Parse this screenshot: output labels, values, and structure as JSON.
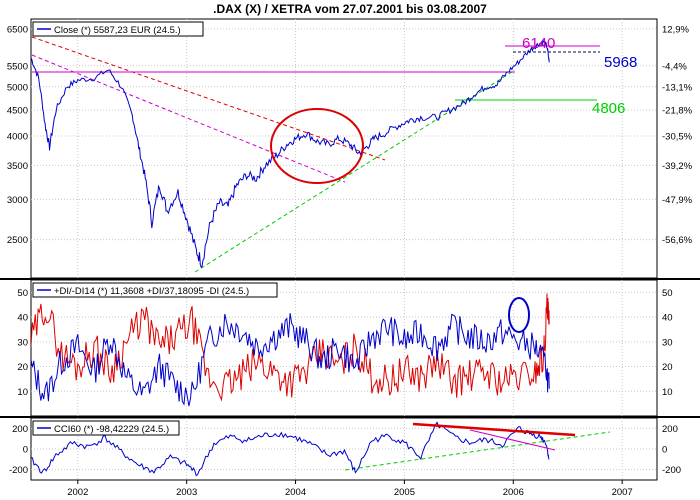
{
  "title": ".DAX (X) / XETRA vom 27.07.2001 bis 03.08.2007",
  "x_ticks": [
    "2002",
    "2003",
    "2004",
    "2005",
    "2006",
    "2007"
  ],
  "colors": {
    "price": "#0000cc",
    "di_plus": "#0000cc",
    "di_minus": "#dd0000",
    "annot_blue": "#0000cc",
    "annot_green": "#00cc00",
    "annot_magenta": "#cc00cc",
    "annot_red": "#dd0000"
  },
  "chart_data": [
    {
      "type": "line",
      "legend": "Close (*) 5587,23 EUR (24.5.)",
      "y_ticks_left": [
        "6500",
        "5500",
        "5000",
        "4500",
        "4000",
        "3500",
        "3000",
        "2500"
      ],
      "y_ticks_right": [
        "12,9%",
        "-4,4%",
        "-13,1%",
        "-21,8%",
        "-30,5%",
        "-39,2%",
        "-47,9%",
        "-56,6%"
      ],
      "ylim": [
        2100,
        6800
      ],
      "series": [
        {
          "name": "Close",
          "values": [
            {
              "x": 2001.57,
              "y": 5700
            },
            {
              "x": 2001.64,
              "y": 5200
            },
            {
              "x": 2001.7,
              "y": 4200
            },
            {
              "x": 2001.74,
              "y": 3800
            },
            {
              "x": 2001.8,
              "y": 4500
            },
            {
              "x": 2001.9,
              "y": 5000
            },
            {
              "x": 2002.0,
              "y": 5150
            },
            {
              "x": 2002.15,
              "y": 5200
            },
            {
              "x": 2002.28,
              "y": 5400
            },
            {
              "x": 2002.4,
              "y": 5000
            },
            {
              "x": 2002.5,
              "y": 4400
            },
            {
              "x": 2002.56,
              "y": 3800
            },
            {
              "x": 2002.62,
              "y": 3300
            },
            {
              "x": 2002.68,
              "y": 2700
            },
            {
              "x": 2002.75,
              "y": 3200
            },
            {
              "x": 2002.82,
              "y": 2850
            },
            {
              "x": 2002.92,
              "y": 3100
            },
            {
              "x": 2003.0,
              "y": 2750
            },
            {
              "x": 2003.08,
              "y": 2400
            },
            {
              "x": 2003.14,
              "y": 2250
            },
            {
              "x": 2003.22,
              "y": 2700
            },
            {
              "x": 2003.3,
              "y": 2950
            },
            {
              "x": 2003.38,
              "y": 2900
            },
            {
              "x": 2003.46,
              "y": 3200
            },
            {
              "x": 2003.55,
              "y": 3350
            },
            {
              "x": 2003.64,
              "y": 3300
            },
            {
              "x": 2003.72,
              "y": 3500
            },
            {
              "x": 2003.82,
              "y": 3650
            },
            {
              "x": 2003.92,
              "y": 3850
            },
            {
              "x": 2004.0,
              "y": 3950
            },
            {
              "x": 2004.1,
              "y": 4050
            },
            {
              "x": 2004.2,
              "y": 3900
            },
            {
              "x": 2004.3,
              "y": 3850
            },
            {
              "x": 2004.4,
              "y": 3950
            },
            {
              "x": 2004.5,
              "y": 3850
            },
            {
              "x": 2004.58,
              "y": 3700
            },
            {
              "x": 2004.65,
              "y": 3800
            },
            {
              "x": 2004.72,
              "y": 3950
            },
            {
              "x": 2004.82,
              "y": 4050
            },
            {
              "x": 2004.95,
              "y": 4200
            },
            {
              "x": 2005.05,
              "y": 4300
            },
            {
              "x": 2005.15,
              "y": 4350
            },
            {
              "x": 2005.3,
              "y": 4350
            },
            {
              "x": 2005.42,
              "y": 4500
            },
            {
              "x": 2005.55,
              "y": 4650
            },
            {
              "x": 2005.65,
              "y": 4850
            },
            {
              "x": 2005.75,
              "y": 5000
            },
            {
              "x": 2005.85,
              "y": 5050
            },
            {
              "x": 2005.95,
              "y": 5350
            },
            {
              "x": 2006.05,
              "y": 5600
            },
            {
              "x": 2006.15,
              "y": 5900
            },
            {
              "x": 2006.22,
              "y": 6050
            },
            {
              "x": 2006.28,
              "y": 6140
            },
            {
              "x": 2006.31,
              "y": 6000
            },
            {
              "x": 2006.33,
              "y": 5587
            }
          ]
        }
      ],
      "annotations": [
        "6140",
        "5968",
        "4806"
      ]
    },
    {
      "type": "line",
      "legend": "+DI/-DI14 (*) 11,3608 +DI/37,18095 -DI (24.5.)",
      "y_ticks": [
        "50",
        "40",
        "30",
        "20",
        "10"
      ],
      "ylim": [
        0,
        55
      ],
      "series": [
        {
          "name": "+DI",
          "values": [
            {
              "x": 2001.57,
              "y": 20
            },
            {
              "x": 2001.7,
              "y": 8
            },
            {
              "x": 2001.85,
              "y": 22
            },
            {
              "x": 2002.0,
              "y": 28
            },
            {
              "x": 2002.15,
              "y": 18
            },
            {
              "x": 2002.3,
              "y": 32
            },
            {
              "x": 2002.45,
              "y": 15
            },
            {
              "x": 2002.6,
              "y": 8
            },
            {
              "x": 2002.75,
              "y": 20
            },
            {
              "x": 2002.9,
              "y": 12
            },
            {
              "x": 2003.05,
              "y": 8
            },
            {
              "x": 2003.2,
              "y": 30
            },
            {
              "x": 2003.35,
              "y": 38
            },
            {
              "x": 2003.5,
              "y": 35
            },
            {
              "x": 2003.65,
              "y": 28
            },
            {
              "x": 2003.8,
              "y": 32
            },
            {
              "x": 2003.95,
              "y": 36
            },
            {
              "x": 2004.1,
              "y": 30
            },
            {
              "x": 2004.25,
              "y": 22
            },
            {
              "x": 2004.4,
              "y": 28
            },
            {
              "x": 2004.55,
              "y": 20
            },
            {
              "x": 2004.7,
              "y": 32
            },
            {
              "x": 2004.85,
              "y": 36
            },
            {
              "x": 2005.0,
              "y": 30
            },
            {
              "x": 2005.15,
              "y": 34
            },
            {
              "x": 2005.3,
              "y": 28
            },
            {
              "x": 2005.45,
              "y": 36
            },
            {
              "x": 2005.6,
              "y": 32
            },
            {
              "x": 2005.75,
              "y": 30
            },
            {
              "x": 2005.9,
              "y": 34
            },
            {
              "x": 2006.05,
              "y": 30
            },
            {
              "x": 2006.2,
              "y": 28
            },
            {
              "x": 2006.3,
              "y": 20
            },
            {
              "x": 2006.33,
              "y": 11
            }
          ]
        },
        {
          "name": "-DI",
          "values": [
            {
              "x": 2001.57,
              "y": 30
            },
            {
              "x": 2001.7,
              "y": 45
            },
            {
              "x": 2001.85,
              "y": 25
            },
            {
              "x": 2002.0,
              "y": 20
            },
            {
              "x": 2002.15,
              "y": 28
            },
            {
              "x": 2002.3,
              "y": 18
            },
            {
              "x": 2002.45,
              "y": 30
            },
            {
              "x": 2002.6,
              "y": 40
            },
            {
              "x": 2002.75,
              "y": 28
            },
            {
              "x": 2002.9,
              "y": 32
            },
            {
              "x": 2003.05,
              "y": 38
            },
            {
              "x": 2003.2,
              "y": 15
            },
            {
              "x": 2003.35,
              "y": 12
            },
            {
              "x": 2003.5,
              "y": 16
            },
            {
              "x": 2003.65,
              "y": 22
            },
            {
              "x": 2003.8,
              "y": 18
            },
            {
              "x": 2003.95,
              "y": 14
            },
            {
              "x": 2004.1,
              "y": 18
            },
            {
              "x": 2004.25,
              "y": 26
            },
            {
              "x": 2004.4,
              "y": 20
            },
            {
              "x": 2004.55,
              "y": 28
            },
            {
              "x": 2004.7,
              "y": 16
            },
            {
              "x": 2004.85,
              "y": 14
            },
            {
              "x": 2005.0,
              "y": 18
            },
            {
              "x": 2005.15,
              "y": 16
            },
            {
              "x": 2005.3,
              "y": 22
            },
            {
              "x": 2005.45,
              "y": 14
            },
            {
              "x": 2005.6,
              "y": 16
            },
            {
              "x": 2005.75,
              "y": 18
            },
            {
              "x": 2005.9,
              "y": 14
            },
            {
              "x": 2006.05,
              "y": 16
            },
            {
              "x": 2006.2,
              "y": 18
            },
            {
              "x": 2006.28,
              "y": 25
            },
            {
              "x": 2006.31,
              "y": 44
            },
            {
              "x": 2006.33,
              "y": 37
            }
          ]
        }
      ]
    },
    {
      "type": "line",
      "legend": "CCI60 (*) -98,42229 (24.5.)",
      "y_ticks_left": [
        "200",
        "0",
        "-200"
      ],
      "y_ticks_right": [
        "200",
        "0",
        "-200"
      ],
      "ylim": [
        -300,
        300
      ],
      "series": [
        {
          "name": "CCI60",
          "values": [
            {
              "x": 2001.57,
              "y": -100
            },
            {
              "x": 2001.68,
              "y": -230
            },
            {
              "x": 2001.8,
              "y": -60
            },
            {
              "x": 2001.95,
              "y": 60
            },
            {
              "x": 2002.1,
              "y": 20
            },
            {
              "x": 2002.25,
              "y": 110
            },
            {
              "x": 2002.4,
              "y": -30
            },
            {
              "x": 2002.55,
              "y": -150
            },
            {
              "x": 2002.7,
              "y": -220
            },
            {
              "x": 2002.85,
              "y": -80
            },
            {
              "x": 2003.0,
              "y": -150
            },
            {
              "x": 2003.1,
              "y": -240
            },
            {
              "x": 2003.25,
              "y": 50
            },
            {
              "x": 2003.4,
              "y": 120
            },
            {
              "x": 2003.55,
              "y": 80
            },
            {
              "x": 2003.7,
              "y": 130
            },
            {
              "x": 2003.85,
              "y": 150
            },
            {
              "x": 2004.0,
              "y": 110
            },
            {
              "x": 2004.15,
              "y": 40
            },
            {
              "x": 2004.3,
              "y": -60
            },
            {
              "x": 2004.45,
              "y": -20
            },
            {
              "x": 2004.55,
              "y": -230
            },
            {
              "x": 2004.7,
              "y": 80
            },
            {
              "x": 2004.85,
              "y": 130
            },
            {
              "x": 2005.0,
              "y": 60
            },
            {
              "x": 2005.15,
              "y": -80
            },
            {
              "x": 2005.3,
              "y": 240
            },
            {
              "x": 2005.45,
              "y": 120
            },
            {
              "x": 2005.6,
              "y": 60
            },
            {
              "x": 2005.75,
              "y": 90
            },
            {
              "x": 2005.9,
              "y": 40
            },
            {
              "x": 2006.05,
              "y": 200
            },
            {
              "x": 2006.15,
              "y": 150
            },
            {
              "x": 2006.25,
              "y": 120
            },
            {
              "x": 2006.3,
              "y": 60
            },
            {
              "x": 2006.33,
              "y": -98
            }
          ]
        }
      ]
    }
  ]
}
